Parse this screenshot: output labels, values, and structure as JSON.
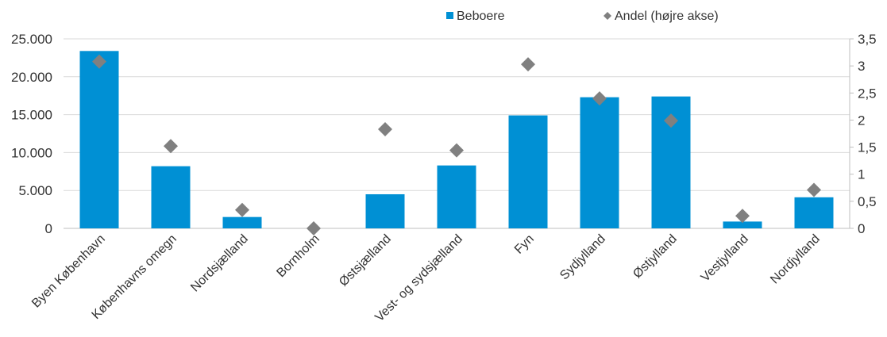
{
  "chart_data": {
    "type": "bar",
    "categories": [
      "Byen København",
      "Københavns omegn",
      "Nordsjælland",
      "Bornholm",
      "Østsjælland",
      "Vest- og sydsjælland",
      "Fyn",
      "Sydjylland",
      "Østjylland",
      "Vestjylland",
      "Nordjylland"
    ],
    "series": [
      {
        "name": "Beboere",
        "type": "bar",
        "axis": "left",
        "color": "#0090d4",
        "values": [
          23400,
          8200,
          1500,
          0,
          4500,
          8300,
          14900,
          17300,
          17400,
          900,
          4100
        ]
      },
      {
        "name": "Andel (højre akse)",
        "type": "scatter",
        "marker": "diamond",
        "axis": "right",
        "color": "#808080",
        "values": [
          3.08,
          1.52,
          0.34,
          0.0,
          1.83,
          1.44,
          3.03,
          2.4,
          1.99,
          0.23,
          0.71
        ]
      }
    ],
    "y_left": {
      "ylim": [
        0,
        25000
      ],
      "ticks": [
        0,
        5000,
        10000,
        15000,
        20000,
        25000
      ],
      "tick_labels": [
        "0",
        "5.000",
        "10.000",
        "15.000",
        "20.000",
        "25.000"
      ]
    },
    "y_right": {
      "ylim": [
        0,
        3.5
      ],
      "ticks": [
        0,
        0.5,
        1,
        1.5,
        2,
        2.5,
        3,
        3.5
      ],
      "tick_labels": [
        "0",
        "0,5",
        "1",
        "1,5",
        "2",
        "2,5",
        "3",
        "3,5"
      ]
    },
    "grid": true,
    "legend": {
      "position": "top-right",
      "items": [
        "Beboere",
        "Andel (højre akse)"
      ]
    }
  }
}
